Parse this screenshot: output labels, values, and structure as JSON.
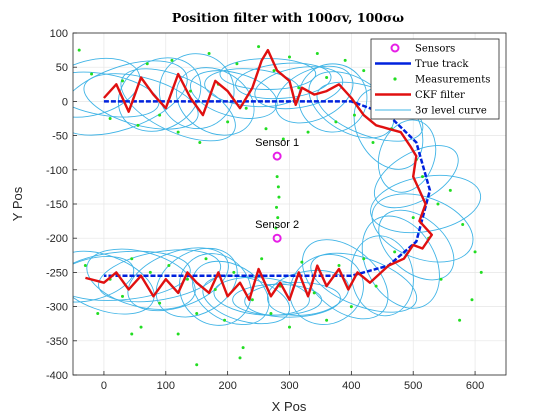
{
  "chart_data": {
    "type": "scatter",
    "title": "Position filter with 100σv, 100σω",
    "xlabel": "X Pos",
    "ylabel": "Y Pos",
    "xlim": [
      -50,
      650
    ],
    "ylim": [
      -400,
      100
    ],
    "xticks": [
      0,
      100,
      200,
      300,
      400,
      500,
      600
    ],
    "yticks": [
      100,
      50,
      0,
      -50,
      -100,
      -150,
      -200,
      -250,
      -300,
      -350,
      -400
    ],
    "grid": true,
    "legend_position": "top-right",
    "colors": {
      "sensors": "#e61ee6",
      "true_track": "#0022dd",
      "measurements": "#22dd22",
      "ckf": "#e01010",
      "level_curve": "#40b4e6"
    },
    "series": [
      {
        "name": "Sensors",
        "marker": "circle",
        "points": [
          [
            280,
            -80
          ],
          [
            280,
            -200
          ]
        ]
      },
      {
        "name": "True track",
        "line": "dashed",
        "points": [
          [
            0,
            0
          ],
          [
            100,
            0
          ],
          [
            200,
            0
          ],
          [
            300,
            0
          ],
          [
            400,
            0
          ],
          [
            460,
            -20
          ],
          [
            505,
            -60
          ],
          [
            527,
            -130
          ],
          [
            505,
            -205
          ],
          [
            460,
            -240
          ],
          [
            400,
            -255
          ],
          [
            300,
            -255
          ],
          [
            200,
            -255
          ],
          [
            100,
            -255
          ],
          [
            0,
            -255
          ]
        ]
      },
      {
        "name": "Measurements",
        "marker": "dot",
        "points": [
          [
            -40,
            75
          ],
          [
            -20,
            40
          ],
          [
            10,
            -25
          ],
          [
            30,
            30
          ],
          [
            55,
            -35
          ],
          [
            70,
            55
          ],
          [
            90,
            -20
          ],
          [
            110,
            60
          ],
          [
            120,
            -45
          ],
          [
            140,
            15
          ],
          [
            155,
            -60
          ],
          [
            170,
            70
          ],
          [
            185,
            25
          ],
          [
            200,
            -30
          ],
          [
            215,
            55
          ],
          [
            230,
            -10
          ],
          [
            250,
            80
          ],
          [
            262,
            -40
          ],
          [
            275,
            45
          ],
          [
            290,
            -55
          ],
          [
            300,
            65
          ],
          [
            315,
            20
          ],
          [
            330,
            -45
          ],
          [
            345,
            70
          ],
          [
            360,
            35
          ],
          [
            375,
            -30
          ],
          [
            390,
            60
          ],
          [
            405,
            -20
          ],
          [
            420,
            45
          ],
          [
            435,
            -60
          ],
          [
            450,
            25
          ],
          [
            465,
            -40
          ],
          [
            480,
            55
          ],
          [
            490,
            10
          ],
          [
            505,
            -85
          ],
          [
            515,
            -110
          ],
          [
            540,
            -150
          ],
          [
            560,
            -130
          ],
          [
            580,
            -180
          ],
          [
            600,
            -220
          ],
          [
            545,
            -260
          ],
          [
            525,
            -200
          ],
          [
            500,
            -170
          ],
          [
            470,
            -220
          ],
          [
            440,
            -270
          ],
          [
            420,
            -230
          ],
          [
            400,
            -300
          ],
          [
            380,
            -240
          ],
          [
            360,
            -320
          ],
          [
            340,
            -280
          ],
          [
            320,
            -235
          ],
          [
            300,
            -330
          ],
          [
            285,
            -270
          ],
          [
            270,
            -310
          ],
          [
            255,
            -230
          ],
          [
            240,
            -290
          ],
          [
            225,
            -360
          ],
          [
            210,
            -250
          ],
          [
            195,
            -320
          ],
          [
            180,
            -275
          ],
          [
            165,
            -230
          ],
          [
            150,
            -310
          ],
          [
            135,
            -260
          ],
          [
            120,
            -340
          ],
          [
            105,
            -240
          ],
          [
            90,
            -295
          ],
          [
            75,
            -250
          ],
          [
            60,
            -330
          ],
          [
            45,
            -230
          ],
          [
            30,
            -285
          ],
          [
            10,
            -260
          ],
          [
            -10,
            -310
          ],
          [
            -30,
            -240
          ],
          [
            280,
            -110
          ],
          [
            282,
            -125
          ],
          [
            279,
            -155
          ],
          [
            281,
            -170
          ],
          [
            283,
            -140
          ],
          [
            278,
            -185
          ],
          [
            595,
            -290
          ],
          [
            610,
            -250
          ],
          [
            575,
            -320
          ],
          [
            45,
            -340
          ],
          [
            220,
            -375
          ],
          [
            150,
            -385
          ]
        ]
      },
      {
        "name": "CKF filter",
        "line": "solid",
        "points": [
          [
            0,
            5
          ],
          [
            20,
            25
          ],
          [
            40,
            -15
          ],
          [
            60,
            35
          ],
          [
            80,
            10
          ],
          [
            100,
            -10
          ],
          [
            120,
            40
          ],
          [
            140,
            5
          ],
          [
            160,
            -20
          ],
          [
            180,
            30
          ],
          [
            200,
            15
          ],
          [
            220,
            -10
          ],
          [
            240,
            20
          ],
          [
            255,
            60
          ],
          [
            265,
            75
          ],
          [
            280,
            45
          ],
          [
            300,
            30
          ],
          [
            310,
            -5
          ],
          [
            320,
            20
          ],
          [
            340,
            10
          ],
          [
            360,
            15
          ],
          [
            380,
            25
          ],
          [
            400,
            5
          ],
          [
            420,
            -20
          ],
          [
            440,
            -35
          ],
          [
            460,
            -40
          ],
          [
            480,
            -45
          ],
          [
            495,
            -65
          ],
          [
            505,
            -80
          ],
          [
            500,
            -110
          ],
          [
            520,
            -150
          ],
          [
            510,
            -175
          ],
          [
            530,
            -195
          ],
          [
            515,
            -215
          ],
          [
            500,
            -210
          ],
          [
            485,
            -230
          ],
          [
            460,
            -240
          ],
          [
            430,
            -265
          ],
          [
            410,
            -250
          ],
          [
            395,
            -275
          ],
          [
            380,
            -245
          ],
          [
            360,
            -270
          ],
          [
            345,
            -240
          ],
          [
            330,
            -285
          ],
          [
            315,
            -250
          ],
          [
            300,
            -290
          ],
          [
            285,
            -265
          ],
          [
            270,
            -285
          ],
          [
            250,
            -245
          ],
          [
            235,
            -290
          ],
          [
            220,
            -265
          ],
          [
            200,
            -285
          ],
          [
            185,
            -250
          ],
          [
            170,
            -280
          ],
          [
            150,
            -265
          ],
          [
            135,
            -250
          ],
          [
            120,
            -280
          ],
          [
            100,
            -260
          ],
          [
            80,
            -285
          ],
          [
            60,
            -255
          ],
          [
            40,
            -275
          ],
          [
            20,
            -250
          ],
          [
            0,
            -265
          ],
          [
            -30,
            -258
          ]
        ]
      }
    ],
    "level_curves": {
      "name": "3σ level curve",
      "ellipses": [
        {
          "cx": -20,
          "cy": 20,
          "rx": 80,
          "ry": 40,
          "rot": 15
        },
        {
          "cx": 0,
          "cy": 10,
          "rx": 90,
          "ry": 30,
          "rot": -10
        },
        {
          "cx": 30,
          "cy": 5,
          "rx": 110,
          "ry": 45,
          "rot": 20
        },
        {
          "cx": 60,
          "cy": 0,
          "rx": 95,
          "ry": 35,
          "rot": -15
        },
        {
          "cx": 90,
          "cy": 10,
          "rx": 70,
          "ry": 50,
          "rot": 30
        },
        {
          "cx": 120,
          "cy": -5,
          "rx": 100,
          "ry": 40,
          "rot": -25
        },
        {
          "cx": 150,
          "cy": 15,
          "rx": 60,
          "ry": 55,
          "rot": 40
        },
        {
          "cx": 180,
          "cy": 0,
          "rx": 50,
          "ry": 60,
          "rot": 60
        },
        {
          "cx": 210,
          "cy": 10,
          "rx": 35,
          "ry": 65,
          "rot": 75
        },
        {
          "cx": 240,
          "cy": 20,
          "rx": 30,
          "ry": 70,
          "rot": 85
        },
        {
          "cx": 265,
          "cy": 40,
          "rx": 25,
          "ry": 70,
          "rot": 90
        },
        {
          "cx": 290,
          "cy": 30,
          "rx": 28,
          "ry": 70,
          "rot": 95
        },
        {
          "cx": 315,
          "cy": 20,
          "rx": 32,
          "ry": 65,
          "rot": 100
        },
        {
          "cx": 340,
          "cy": 10,
          "rx": 40,
          "ry": 60,
          "rot": 115
        },
        {
          "cx": 370,
          "cy": 5,
          "rx": 55,
          "ry": 50,
          "rot": 130
        },
        {
          "cx": 400,
          "cy": -5,
          "rx": 75,
          "ry": 40,
          "rot": 150
        },
        {
          "cx": 430,
          "cy": -15,
          "rx": 90,
          "ry": 35,
          "rot": 160
        },
        {
          "cx": 460,
          "cy": -40,
          "rx": 70,
          "ry": 45,
          "rot": 120
        },
        {
          "cx": 490,
          "cy": -80,
          "rx": 60,
          "ry": 40,
          "rot": 70
        },
        {
          "cx": 505,
          "cy": -110,
          "rx": 75,
          "ry": 35,
          "rot": 30
        },
        {
          "cx": 520,
          "cy": -150,
          "rx": 90,
          "ry": 40,
          "rot": 10
        },
        {
          "cx": 515,
          "cy": -185,
          "rx": 85,
          "ry": 45,
          "rot": -20
        },
        {
          "cx": 505,
          "cy": -210,
          "rx": 70,
          "ry": 40,
          "rot": -40
        },
        {
          "cx": 480,
          "cy": -235,
          "rx": 80,
          "ry": 50,
          "rot": -60
        },
        {
          "cx": 450,
          "cy": -255,
          "rx": 65,
          "ry": 45,
          "rot": -80
        },
        {
          "cx": 420,
          "cy": -265,
          "rx": 90,
          "ry": 35,
          "rot": 160
        },
        {
          "cx": 390,
          "cy": -260,
          "rx": 80,
          "ry": 45,
          "rot": 140
        },
        {
          "cx": 360,
          "cy": -275,
          "rx": 55,
          "ry": 55,
          "rot": 120
        },
        {
          "cx": 330,
          "cy": -280,
          "rx": 35,
          "ry": 60,
          "rot": 100
        },
        {
          "cx": 305,
          "cy": -290,
          "rx": 28,
          "ry": 70,
          "rot": 92
        },
        {
          "cx": 280,
          "cy": -290,
          "rx": 25,
          "ry": 65,
          "rot": 90
        },
        {
          "cx": 255,
          "cy": -285,
          "rx": 30,
          "ry": 70,
          "rot": 85
        },
        {
          "cx": 230,
          "cy": -290,
          "rx": 35,
          "ry": 65,
          "rot": 75
        },
        {
          "cx": 205,
          "cy": -280,
          "rx": 45,
          "ry": 60,
          "rot": 60
        },
        {
          "cx": 180,
          "cy": -275,
          "rx": 55,
          "ry": 55,
          "rot": 45
        },
        {
          "cx": 150,
          "cy": -265,
          "rx": 70,
          "ry": 45,
          "rot": 30
        },
        {
          "cx": 120,
          "cy": -260,
          "rx": 85,
          "ry": 40,
          "rot": 20
        },
        {
          "cx": 90,
          "cy": -255,
          "rx": 100,
          "ry": 35,
          "rot": 10
        },
        {
          "cx": 60,
          "cy": -260,
          "rx": 90,
          "ry": 40,
          "rot": -15
        },
        {
          "cx": 30,
          "cy": -255,
          "rx": 110,
          "ry": 35,
          "rot": 5
        },
        {
          "cx": 0,
          "cy": -265,
          "rx": 85,
          "ry": 40,
          "rot": -20
        },
        {
          "cx": -20,
          "cy": -260,
          "rx": 70,
          "ry": 30,
          "rot": 15
        }
      ]
    },
    "annotations": [
      {
        "text": "Sensor 1",
        "x": 280,
        "y": -80
      },
      {
        "text": "Sensor 2",
        "x": 280,
        "y": -200
      }
    ]
  }
}
